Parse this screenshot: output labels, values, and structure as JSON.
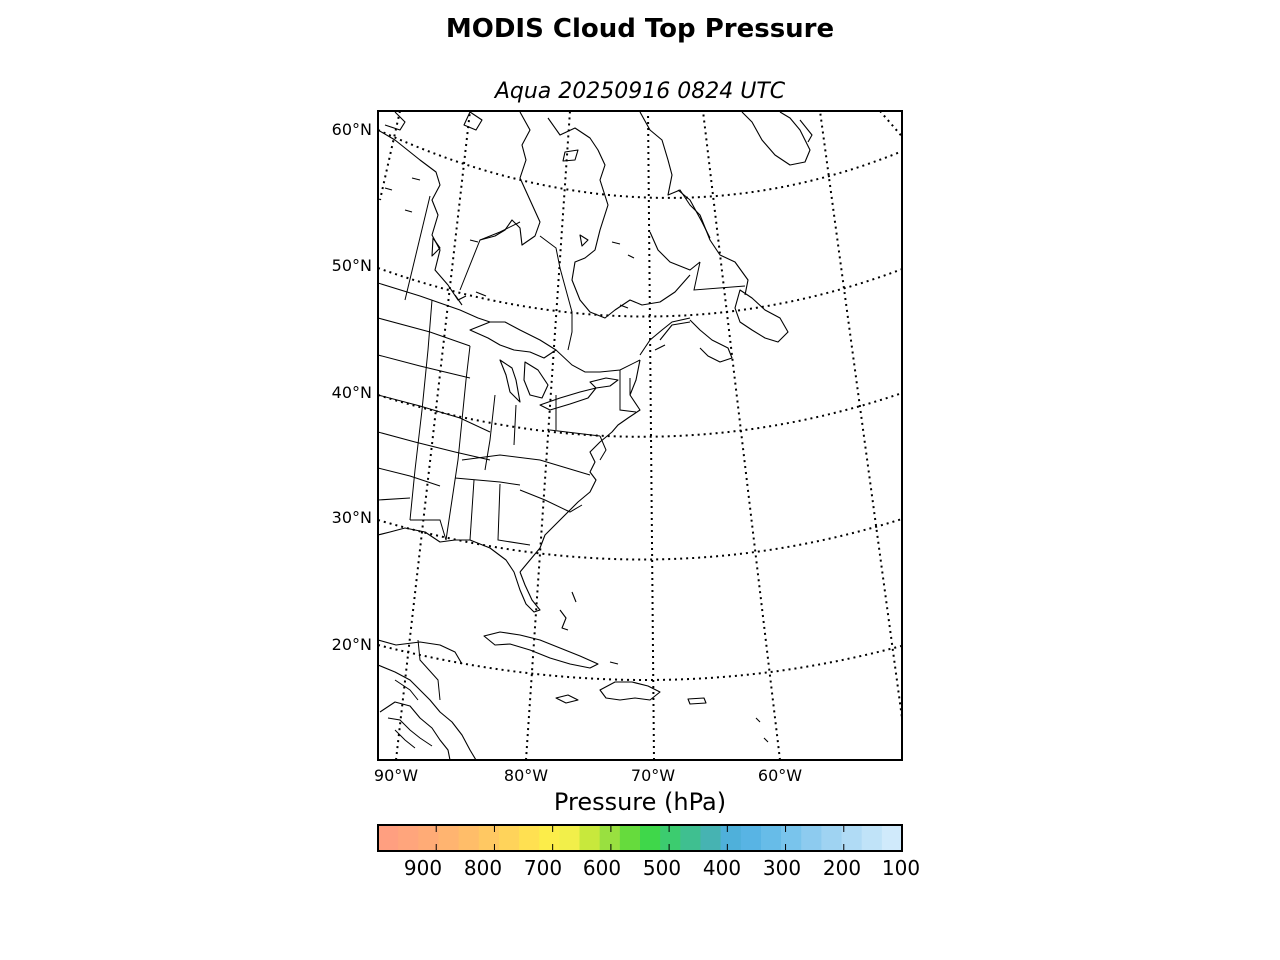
{
  "title": "MODIS Cloud Top Pressure",
  "subtitle": "Aqua 20250916 0824 UTC",
  "lat_labels": [
    {
      "value": 60,
      "text": "60°N"
    },
    {
      "value": 50,
      "text": "50°N"
    },
    {
      "value": 40,
      "text": "40°N"
    },
    {
      "value": 30,
      "text": "30°N"
    },
    {
      "value": 20,
      "text": "20°N"
    }
  ],
  "lon_labels": [
    {
      "value": -90,
      "text": "90°W"
    },
    {
      "value": -80,
      "text": "80°W"
    },
    {
      "value": -70,
      "text": "70°W"
    },
    {
      "value": -60,
      "text": "60°W"
    }
  ],
  "colorbar": {
    "label": "Pressure (hPa)",
    "ticks": [
      "900",
      "800",
      "700",
      "600",
      "500",
      "400",
      "300",
      "200",
      "100"
    ],
    "range": [
      1000,
      100
    ],
    "colors": [
      "#ff9f80",
      "#ffa57c",
      "#ffab76",
      "#ffb470",
      "#ffbd69",
      "#ffc862",
      "#ffd35a",
      "#ffe051",
      "#fced4a",
      "#f2ef4a",
      "#c8e83c",
      "#99e040",
      "#66db3d",
      "#3fd74a",
      "#3ccc6f",
      "#3fbf90",
      "#46b3b2",
      "#4fb0da",
      "#58b4e4",
      "#67bce8",
      "#79c4ec",
      "#8dcbef",
      "#9fd3f2",
      "#b0dbf5",
      "#c0e3f8",
      "#d0eafb"
    ]
  }
}
